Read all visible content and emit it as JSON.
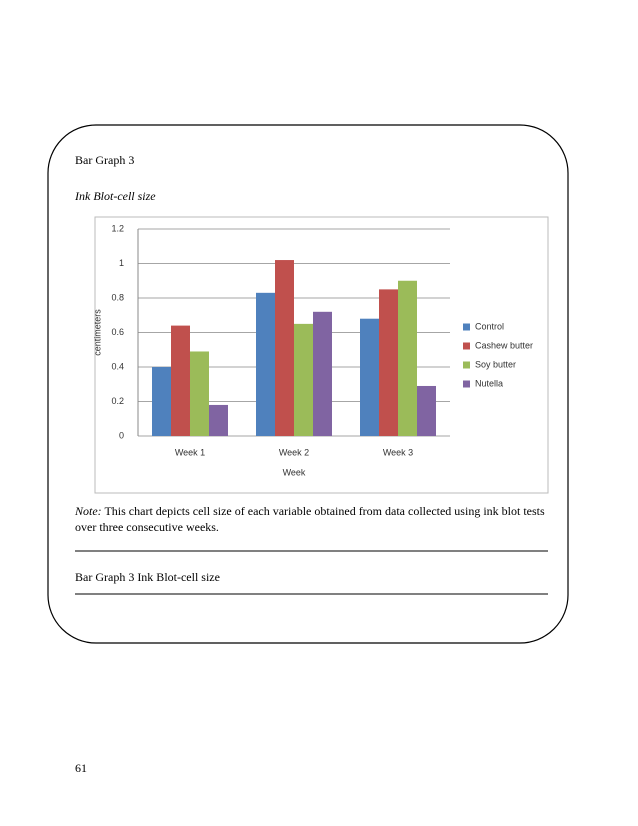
{
  "document": {
    "heading": "Bar Graph 3",
    "subheading": "Ink Blot-cell size",
    "note": {
      "label": "Note:",
      "text": "This chart depicts cell size of each variable obtained from data collected using ink blot tests over three consecutive weeks."
    },
    "caption": "Bar Graph 3 Ink Blot-cell size",
    "page_number": "61"
  },
  "chart_data": {
    "type": "bar",
    "x_label": "Week",
    "y_label": "centimeters",
    "categories": [
      "Week 1",
      "Week 2",
      "Week 3"
    ],
    "series": [
      {
        "name": "Control",
        "color": "#4f81bd",
        "values": [
          0.4,
          0.83,
          0.68
        ]
      },
      {
        "name": "Cashew butter",
        "color": "#c0504d",
        "values": [
          0.64,
          1.02,
          0.85
        ]
      },
      {
        "name": "Soy butter",
        "color": "#9bbb59",
        "values": [
          0.49,
          0.65,
          0.9
        ]
      },
      {
        "name": "Nutella",
        "color": "#8064a2",
        "values": [
          0.18,
          0.72,
          0.29
        ]
      }
    ],
    "ylim": [
      0,
      1.2
    ],
    "yticks": [
      0,
      0.2,
      0.4,
      0.6,
      0.8,
      1,
      1.2
    ],
    "grid": true,
    "legend": "right"
  }
}
